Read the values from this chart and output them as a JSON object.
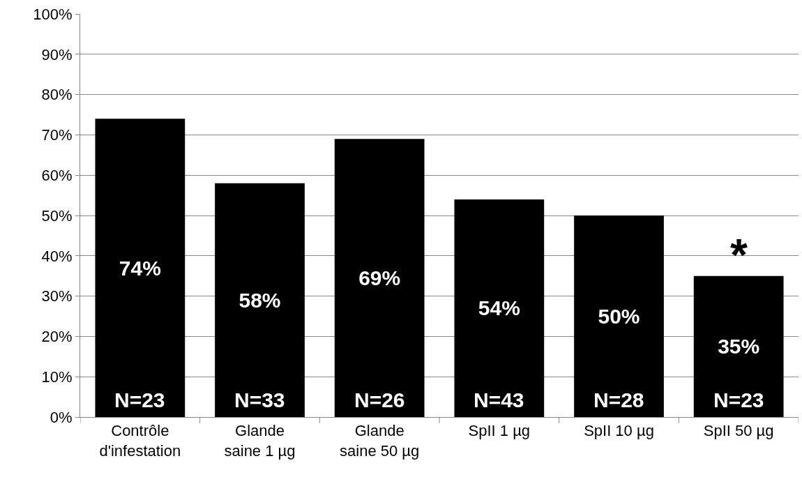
{
  "chart_data": {
    "type": "bar",
    "categories": [
      "Contrôle\nd'infestation",
      "Glande\nsaine 1 µg",
      "Glande\nsaine 50 µg",
      "SpII 1 µg",
      "SpII 10 µg",
      "SpII 50 µg"
    ],
    "values": [
      74,
      58,
      69,
      54,
      50,
      35
    ],
    "value_labels": [
      "74%",
      "58%",
      "69%",
      "54%",
      "50%",
      "35%"
    ],
    "color": "#000000",
    "ylim": [
      0,
      100
    ],
    "yticks": [
      {
        "value": 0,
        "label": "0%"
      },
      {
        "value": 10,
        "label": "10%"
      },
      {
        "value": 20,
        "label": "20%"
      },
      {
        "value": 30,
        "label": "30%"
      },
      {
        "value": 40,
        "label": "40%"
      },
      {
        "value": 50,
        "label": "50%"
      },
      {
        "value": 60,
        "label": "60%"
      },
      {
        "value": 70,
        "label": "70%"
      },
      {
        "value": 80,
        "label": "80%"
      },
      {
        "value": 90,
        "label": "90%"
      },
      {
        "value": 100,
        "label": "100%"
      }
    ],
    "grid": "y",
    "annotations": [
      "N=23",
      "N=33",
      "N=26",
      "N=43",
      "N=28",
      "N=23",
      {
        "text": "*",
        "x": "SpII 50 µg",
        "y": 35
      }
    ]
  }
}
